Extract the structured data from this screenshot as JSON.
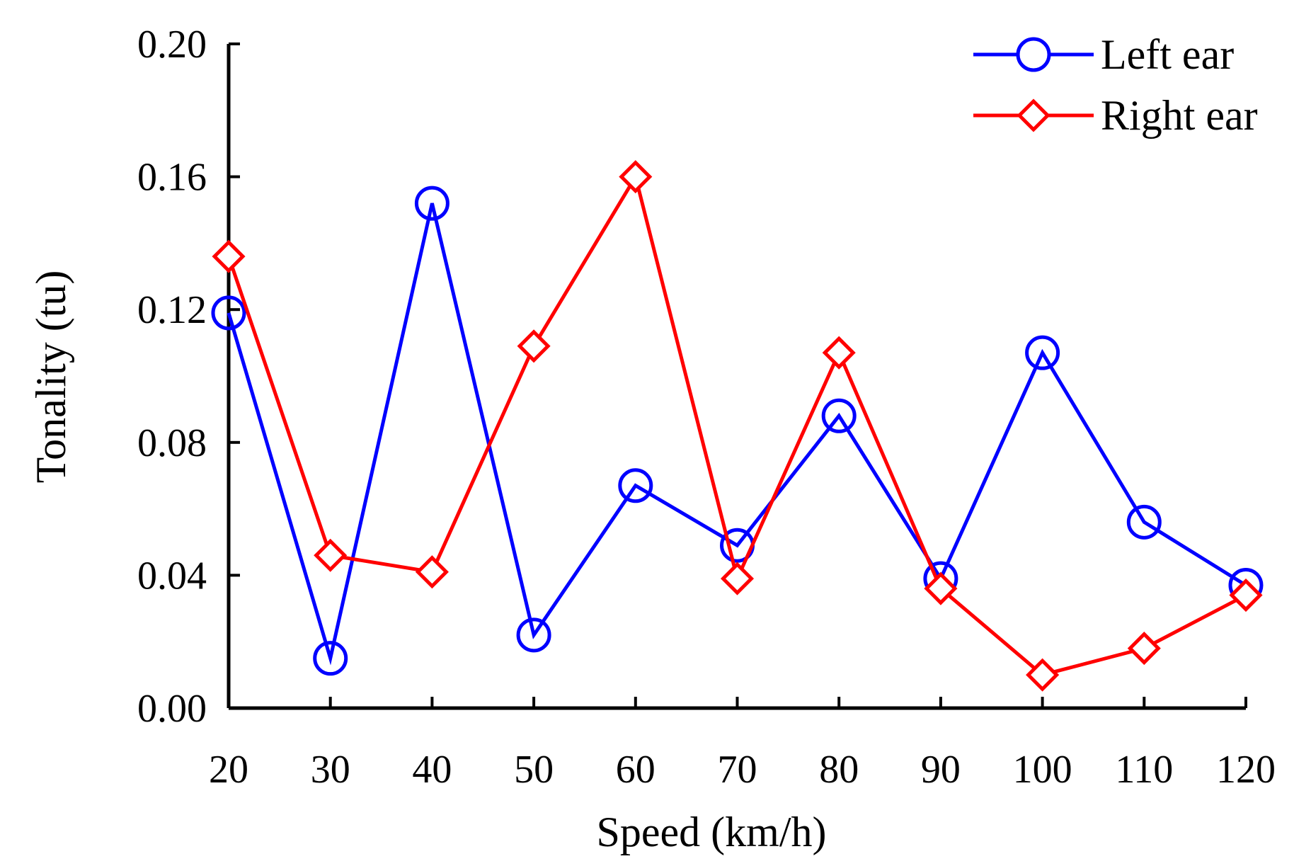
{
  "chart_data": {
    "type": "line",
    "title": "",
    "xlabel": "Speed (km/h)",
    "ylabel": "Tonality (tu)",
    "x": [
      20,
      30,
      40,
      50,
      60,
      70,
      80,
      90,
      100,
      110,
      120
    ],
    "x_tick_labels": [
      "20",
      "30",
      "40",
      "50",
      "60",
      "70",
      "80",
      "90",
      "100",
      "110",
      "120"
    ],
    "y_tick_labels": [
      "0.00",
      "0.04",
      "0.08",
      "0.12",
      "0.16",
      "0.20"
    ],
    "ylim": [
      0,
      0.2
    ],
    "grid": false,
    "legend_position": "top-right",
    "series": [
      {
        "name": "Left ear",
        "color": "#0000ff",
        "marker": "circle",
        "values": [
          0.119,
          0.015,
          0.152,
          0.022,
          0.067,
          0.049,
          0.088,
          0.039,
          0.107,
          0.056,
          0.037
        ]
      },
      {
        "name": "Right ear",
        "color": "#ff0000",
        "marker": "diamond",
        "values": [
          0.136,
          0.046,
          0.041,
          0.109,
          0.16,
          0.039,
          0.107,
          0.036,
          0.01,
          0.018,
          0.034
        ]
      }
    ]
  }
}
